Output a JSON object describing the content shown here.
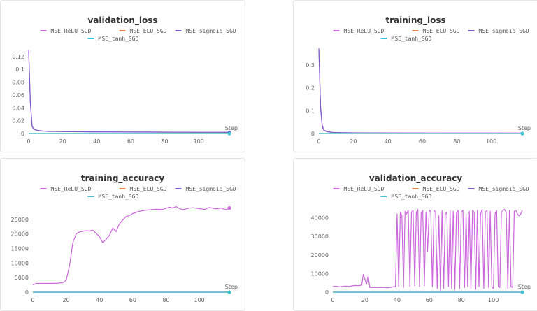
{
  "series_colors": {
    "MSE_ReLU_SGD": "#cc66dd",
    "MSE_ELU_SGD": "#e8804d",
    "MSE_sigmoid_SGD": "#7a5cc8",
    "MSE_tanh_SGD": "#3ec1d3"
  },
  "chart_data": [
    {
      "type": "line",
      "title": "validation_loss",
      "xlabel": "Step",
      "ylabel": "",
      "xlim": [
        0,
        118
      ],
      "ylim": [
        0,
        0.135
      ],
      "xticks": [
        0,
        20,
        40,
        60,
        80,
        100
      ],
      "yticks": [
        0,
        0.02,
        0.04,
        0.06,
        0.08,
        0.1,
        0.12
      ],
      "ytick_labels": [
        "0",
        "0.02",
        "0.04",
        "0.06",
        "0.08",
        "0.1",
        "0.12"
      ],
      "legend": [
        "MSE_ReLU_SGD",
        "MSE_ELU_SGD",
        "MSE_sigmoid_SGD",
        "MSE_tanh_SGD"
      ],
      "grid": false,
      "series": [
        {
          "name": "MSE_ReLU_SGD",
          "x": [
            0,
            1,
            2,
            3,
            5,
            8,
            12,
            20,
            30,
            40,
            50,
            60,
            70,
            80,
            90,
            100,
            110,
            118
          ],
          "y": [
            0.13,
            0.05,
            0.012,
            0.007,
            0.005,
            0.004,
            0.0035,
            0.003,
            0.0028,
            0.0026,
            0.0025,
            0.0024,
            0.0023,
            0.0022,
            0.0021,
            0.002,
            0.002,
            0.0019
          ]
        },
        {
          "name": "MSE_ELU_SGD",
          "x": [
            0,
            118
          ],
          "y": [
            0,
            0
          ]
        },
        {
          "name": "MSE_sigmoid_SGD",
          "x": [
            0,
            1,
            2,
            3,
            5,
            8,
            12,
            20,
            30,
            40,
            50,
            60,
            70,
            80,
            90,
            100,
            110,
            118
          ],
          "y": [
            0.128,
            0.048,
            0.011,
            0.0065,
            0.0048,
            0.0038,
            0.0033,
            0.0029,
            0.0027,
            0.0025,
            0.0024,
            0.0023,
            0.0022,
            0.0021,
            0.002,
            0.0019,
            0.0019,
            0.0018
          ]
        },
        {
          "name": "MSE_tanh_SGD",
          "x": [
            0,
            118
          ],
          "y": [
            0,
            0
          ]
        }
      ],
      "endpoints": [
        "MSE_sigmoid_SGD",
        "MSE_tanh_SGD"
      ]
    },
    {
      "type": "line",
      "title": "training_loss",
      "xlabel": "Step",
      "ylabel": "",
      "xlim": [
        0,
        118
      ],
      "ylim": [
        0,
        0.38
      ],
      "xticks": [
        0,
        20,
        40,
        60,
        80,
        100
      ],
      "yticks": [
        0,
        0.1,
        0.2,
        0.3
      ],
      "ytick_labels": [
        "0",
        "0.1",
        "0.2",
        "0.3"
      ],
      "legend": [
        "MSE_ReLU_SGD",
        "MSE_ELU_SGD",
        "MSE_sigmoid_SGD",
        "MSE_tanh_SGD"
      ],
      "grid": false,
      "series": [
        {
          "name": "MSE_ReLU_SGD",
          "x": [
            0,
            1,
            2,
            3,
            5,
            8,
            12,
            20,
            40,
            60,
            80,
            100,
            118
          ],
          "y": [
            0.375,
            0.12,
            0.035,
            0.015,
            0.008,
            0.005,
            0.004,
            0.003,
            0.0025,
            0.002,
            0.002,
            0.0018,
            0.0017
          ]
        },
        {
          "name": "MSE_ELU_SGD",
          "x": [
            0,
            118
          ],
          "y": [
            0,
            0
          ]
        },
        {
          "name": "MSE_sigmoid_SGD",
          "x": [
            0,
            1,
            2,
            3,
            5,
            8,
            12,
            20,
            40,
            60,
            80,
            100,
            118
          ],
          "y": [
            0.37,
            0.11,
            0.03,
            0.013,
            0.007,
            0.0045,
            0.0035,
            0.0028,
            0.0023,
            0.002,
            0.0018,
            0.0017,
            0.0016
          ]
        },
        {
          "name": "MSE_tanh_SGD",
          "x": [
            0,
            118
          ],
          "y": [
            0,
            0
          ]
        }
      ],
      "endpoints": [
        "MSE_tanh_SGD"
      ]
    },
    {
      "type": "line",
      "title": "training_accuracy",
      "xlabel": "Step",
      "ylabel": "",
      "xlim": [
        0,
        118
      ],
      "ylim": [
        0,
        30000
      ],
      "xticks": [
        0,
        20,
        40,
        60,
        80,
        100
      ],
      "yticks": [
        0,
        5000,
        10000,
        15000,
        20000,
        25000
      ],
      "ytick_labels": [
        "0",
        "5000",
        "10000",
        "15000",
        "20000",
        "25000"
      ],
      "legend": [
        "MSE_ReLU_SGD",
        "MSE_ELU_SGD",
        "MSE_sigmoid_SGD",
        "MSE_tanh_SGD"
      ],
      "grid": false,
      "series": [
        {
          "name": "MSE_ReLU_SGD",
          "x": [
            0,
            2,
            5,
            10,
            15,
            18,
            20,
            22,
            24,
            26,
            28,
            30,
            32,
            34,
            36,
            38,
            40,
            42,
            44,
            46,
            48,
            50,
            52,
            54,
            56,
            58,
            60,
            63,
            66,
            70,
            74,
            78,
            82,
            84,
            86,
            88,
            90,
            93,
            96,
            100,
            103,
            106,
            110,
            113,
            116,
            118
          ],
          "y": [
            2500,
            3000,
            3000,
            3000,
            3100,
            3300,
            4000,
            9000,
            17000,
            20000,
            20700,
            20900,
            21100,
            21000,
            21300,
            20200,
            19000,
            17000,
            18200,
            19500,
            22000,
            20800,
            23500,
            24800,
            26000,
            26300,
            27000,
            27600,
            28000,
            28300,
            28500,
            28400,
            29200,
            28900,
            29400,
            28700,
            28300,
            28800,
            29000,
            28700,
            28400,
            29100,
            28600,
            28900,
            28300,
            28900
          ]
        },
        {
          "name": "MSE_ELU_SGD",
          "x": [
            0,
            118
          ],
          "y": [
            0,
            0
          ]
        },
        {
          "name": "MSE_sigmoid_SGD",
          "x": [
            0,
            118
          ],
          "y": [
            0,
            0
          ]
        },
        {
          "name": "MSE_tanh_SGD",
          "x": [
            0,
            118
          ],
          "y": [
            0,
            0
          ]
        }
      ],
      "endpoints": [
        "MSE_ReLU_SGD",
        "MSE_tanh_SGD"
      ]
    },
    {
      "type": "line",
      "title": "validation_accuracy",
      "xlabel": "Step",
      "ylabel": "",
      "xlim": [
        0,
        118
      ],
      "ylim": [
        0,
        47000
      ],
      "xticks": [
        0,
        20,
        40,
        60,
        80,
        100
      ],
      "yticks": [
        0,
        10000,
        20000,
        30000,
        40000
      ],
      "ytick_labels": [
        "0",
        "10000",
        "20000",
        "30000",
        "40000"
      ],
      "legend": [
        "MSE_ReLU_SGD",
        "MSE_ELU_SGD",
        "MSE_sigmoid_SGD",
        "MSE_tanh_SGD"
      ],
      "grid": false,
      "series": [
        {
          "name": "MSE_ReLU_SGD",
          "x": [
            0,
            2,
            4,
            6,
            8,
            10,
            12,
            14,
            16,
            18,
            19,
            20,
            21,
            22,
            23,
            24,
            26,
            28,
            30,
            32,
            34,
            36,
            38,
            39,
            40,
            41,
            42,
            43,
            44,
            45,
            46,
            47,
            48,
            49,
            50,
            51,
            52,
            53,
            54,
            55,
            56,
            57,
            58,
            59,
            60,
            61,
            62,
            63,
            64,
            65,
            66,
            67,
            68,
            69,
            70,
            71,
            72,
            73,
            74,
            75,
            76,
            77,
            78,
            79,
            80,
            81,
            82,
            83,
            84,
            85,
            86,
            87,
            88,
            89,
            90,
            91,
            92,
            93,
            94,
            95,
            96,
            97,
            98,
            99,
            100,
            101,
            102,
            103,
            104,
            105,
            106,
            107,
            108,
            109,
            110,
            111,
            112,
            113,
            114,
            115,
            116,
            117,
            118
          ],
          "y": [
            3000,
            3200,
            2900,
            3100,
            3300,
            3000,
            3400,
            3600,
            3500,
            3800,
            9500,
            7000,
            4200,
            8800,
            2600,
            2500,
            2600,
            2500,
            2600,
            2500,
            2400,
            2600,
            3000,
            2800,
            42000,
            3000,
            43000,
            41000,
            2500,
            43500,
            42000,
            44000,
            3000,
            43000,
            44000,
            3500,
            43000,
            44500,
            3000,
            42500,
            44000,
            3500,
            43000,
            22000,
            44000,
            43500,
            3000,
            44000,
            43000,
            2000,
            41000,
            1000,
            44000,
            2000,
            42000,
            43000,
            3000,
            44000,
            2000,
            43500,
            1500,
            42500,
            44000,
            2000,
            43000,
            44000,
            2500,
            42000,
            3000,
            43500,
            2000,
            44000,
            43000,
            1500,
            44000,
            3000,
            42000,
            44500,
            2000,
            43000,
            44000,
            2500,
            43500,
            3000,
            2000,
            42000,
            44000,
            3000,
            2500,
            43000,
            44000,
            44500,
            43000,
            2000,
            44000,
            3000,
            2500,
            43500,
            44000,
            42000,
            41000,
            42000,
            44000
          ]
        },
        {
          "name": "MSE_ELU_SGD",
          "x": [
            0,
            118
          ],
          "y": [
            0,
            0
          ]
        },
        {
          "name": "MSE_sigmoid_SGD",
          "x": [
            0,
            118
          ],
          "y": [
            0,
            0
          ]
        },
        {
          "name": "MSE_tanh_SGD",
          "x": [
            0,
            118
          ],
          "y": [
            0,
            0
          ]
        }
      ],
      "endpoints": [
        "MSE_tanh_SGD"
      ]
    }
  ]
}
